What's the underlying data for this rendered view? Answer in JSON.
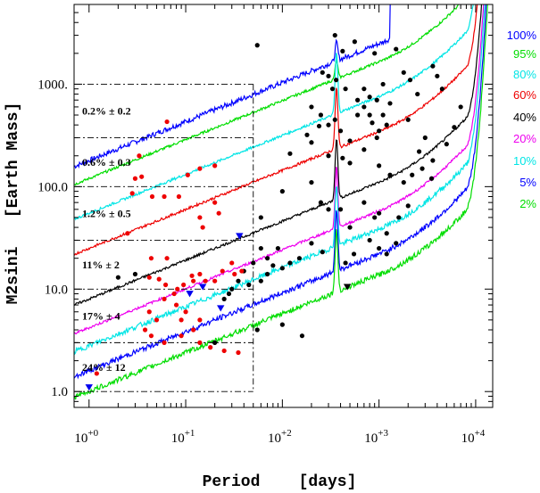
{
  "chart_data": {
    "type": "scatter",
    "xlabel": "Period    [days]",
    "ylabel": "M2sini   [Earth Mass]",
    "x_scale": "log",
    "y_scale": "log",
    "xlim": [
      0.7,
      15000
    ],
    "ylim": [
      0.7,
      6000
    ],
    "x_ticks": [
      {
        "value": 1,
        "base": "10",
        "exp": "+0"
      },
      {
        "value": 10,
        "base": "10",
        "exp": "+1"
      },
      {
        "value": 100,
        "base": "10",
        "exp": "+2"
      },
      {
        "value": 1000,
        "base": "10",
        "exp": "+3"
      },
      {
        "value": 10000,
        "base": "10",
        "exp": "+4"
      }
    ],
    "y_ticks": [
      {
        "value": 1,
        "label": "1.0"
      },
      {
        "value": 10,
        "label": "10.0"
      },
      {
        "value": 100,
        "label": "100.0"
      },
      {
        "value": 1000,
        "label": "1000."
      }
    ],
    "detection_curves": [
      {
        "label": "100%",
        "color": "#0000ff",
        "anchor_y": 180
      },
      {
        "label": "95%",
        "color": "#00dd00",
        "anchor_y": 120
      },
      {
        "label": "80%",
        "color": "#00e5e5",
        "anchor_y": 55
      },
      {
        "label": "60%",
        "color": "#ee0000",
        "anchor_y": 25
      },
      {
        "label": "40%",
        "color": "#000000",
        "anchor_y": 8
      },
      {
        "label": "20%",
        "color": "#ee00ee",
        "anchor_y": 4.2
      },
      {
        "label": "10%",
        "color": "#00e5e5",
        "anchor_y": 2.8
      },
      {
        "label": "5%",
        "color": "#0000ff",
        "anchor_y": 1.6
      },
      {
        "label": "2%",
        "color": "#00dd00",
        "anchor_y": 1.0
      }
    ],
    "occurrence_bins": [
      {
        "label": "0.2% ± 0.2",
        "y_bottom": 300,
        "y_top": 1000
      },
      {
        "label": "0.6% ± 0.3",
        "y_bottom": 100,
        "y_top": 300
      },
      {
        "label": "1.2% ± 0.5",
        "y_bottom": 30,
        "y_top": 100
      },
      {
        "label": "11% ± 2",
        "y_bottom": 10,
        "y_top": 30
      },
      {
        "label": "17% ± 4",
        "y_bottom": 3,
        "y_top": 10
      },
      {
        "label": "24% ± 12",
        "y_bottom": 1,
        "y_top": 3
      }
    ],
    "bin_x_range": [
      0.7,
      50
    ],
    "red_points": [
      [
        1.2,
        1.5
      ],
      [
        3.3,
        200
      ],
      [
        3.0,
        120
      ],
      [
        3.5,
        125
      ],
      [
        6.4,
        430
      ],
      [
        2.8,
        86
      ],
      [
        4.5,
        80
      ],
      [
        6.0,
        80
      ],
      [
        8.5,
        80
      ],
      [
        10.5,
        130
      ],
      [
        14,
        150
      ],
      [
        20,
        160
      ],
      [
        15,
        40
      ],
      [
        14,
        50
      ],
      [
        20,
        70
      ],
      [
        22,
        55
      ],
      [
        2.5,
        35
      ],
      [
        4.4,
        20
      ],
      [
        6.4,
        20
      ],
      [
        4.2,
        13
      ],
      [
        5.3,
        12.5
      ],
      [
        6.2,
        11
      ],
      [
        7.6,
        9
      ],
      [
        8.2,
        10
      ],
      [
        9.5,
        11
      ],
      [
        11.6,
        13.5
      ],
      [
        14,
        14
      ],
      [
        12,
        12
      ],
      [
        16,
        12
      ],
      [
        20,
        12
      ],
      [
        24,
        15
      ],
      [
        30,
        18
      ],
      [
        32,
        14
      ],
      [
        38,
        15
      ],
      [
        6,
        8
      ],
      [
        8,
        7
      ],
      [
        10,
        6
      ],
      [
        14,
        5
      ],
      [
        4.2,
        6
      ],
      [
        5,
        5
      ],
      [
        9,
        5
      ],
      [
        12,
        4
      ],
      [
        4.4,
        3.5
      ],
      [
        3.8,
        4
      ],
      [
        6,
        3
      ],
      [
        9,
        3.5
      ],
      [
        14,
        3
      ],
      [
        18,
        2.7
      ],
      [
        25,
        2.5
      ],
      [
        35,
        2.4
      ]
    ],
    "black_points": [
      [
        55,
        2400
      ],
      [
        350,
        3000
      ],
      [
        420,
        2100
      ],
      [
        560,
        2600
      ],
      [
        900,
        2000
      ],
      [
        1500,
        2200
      ],
      [
        260,
        1300
      ],
      [
        300,
        1200
      ],
      [
        330,
        900
      ],
      [
        360,
        1100
      ],
      [
        450,
        900
      ],
      [
        600,
        700
      ],
      [
        700,
        900
      ],
      [
        800,
        750
      ],
      [
        950,
        700
      ],
      [
        1100,
        1000
      ],
      [
        1300,
        650
      ],
      [
        1800,
        1300
      ],
      [
        2100,
        1100
      ],
      [
        2500,
        800
      ],
      [
        3600,
        1500
      ],
      [
        4000,
        1200
      ],
      [
        4500,
        900
      ],
      [
        200,
        600
      ],
      [
        250,
        500
      ],
      [
        300,
        400
      ],
      [
        350,
        450
      ],
      [
        400,
        350
      ],
      [
        500,
        280
      ],
      [
        600,
        500
      ],
      [
        700,
        600
      ],
      [
        800,
        500
      ],
      [
        850,
        420
      ],
      [
        950,
        300
      ],
      [
        1000,
        350
      ],
      [
        1100,
        500
      ],
      [
        1200,
        400
      ],
      [
        2000,
        450
      ],
      [
        2600,
        220
      ],
      [
        3000,
        300
      ],
      [
        3600,
        180
      ],
      [
        5000,
        260
      ],
      [
        6000,
        380
      ],
      [
        7000,
        600
      ],
      [
        120,
        210
      ],
      [
        180,
        320
      ],
      [
        200,
        270
      ],
      [
        240,
        390
      ],
      [
        300,
        200
      ],
      [
        420,
        190
      ],
      [
        500,
        170
      ],
      [
        700,
        230
      ],
      [
        1000,
        160
      ],
      [
        1300,
        130
      ],
      [
        1800,
        110
      ],
      [
        2200,
        130
      ],
      [
        2800,
        150
      ],
      [
        3500,
        120
      ],
      [
        60,
        50
      ],
      [
        100,
        90
      ],
      [
        200,
        110
      ],
      [
        250,
        70
      ],
      [
        300,
        60
      ],
      [
        400,
        60
      ],
      [
        500,
        40
      ],
      [
        700,
        70
      ],
      [
        900,
        50
      ],
      [
        1000,
        55
      ],
      [
        1200,
        35
      ],
      [
        1600,
        50
      ],
      [
        2000,
        65
      ],
      [
        60,
        25
      ],
      [
        70,
        20
      ],
      [
        90,
        25
      ],
      [
        120,
        18
      ],
      [
        150,
        20
      ],
      [
        200,
        28
      ],
      [
        260,
        23
      ],
      [
        450,
        18
      ],
      [
        550,
        22
      ],
      [
        800,
        30
      ],
      [
        1000,
        25
      ],
      [
        1200,
        22
      ],
      [
        1500,
        28
      ],
      [
        40,
        15
      ],
      [
        50,
        18
      ],
      [
        60,
        12
      ],
      [
        70,
        14
      ],
      [
        80,
        17
      ],
      [
        100,
        16
      ],
      [
        30,
        10
      ],
      [
        35,
        12
      ],
      [
        45,
        11
      ],
      [
        28,
        9
      ],
      [
        25,
        8
      ],
      [
        55,
        4
      ],
      [
        100,
        4.5
      ],
      [
        160,
        3.5
      ],
      [
        20,
        3
      ],
      [
        3,
        14
      ],
      [
        2,
        13
      ]
    ],
    "blue_triangles": [
      [
        1.0,
        1.1
      ],
      [
        11,
        9
      ],
      [
        15,
        10.5
      ],
      [
        23,
        6.5
      ],
      [
        36,
        33
      ]
    ],
    "black_triangles": [
      [
        470,
        10.5
      ]
    ]
  }
}
